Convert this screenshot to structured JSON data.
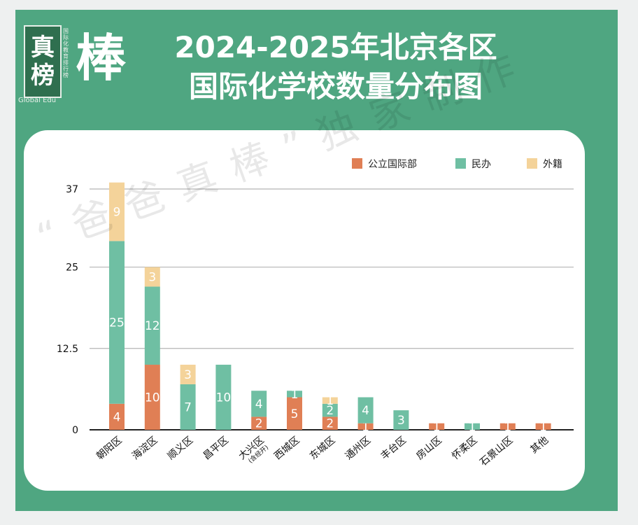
{
  "logo": {
    "char_top": "真",
    "char_bottom": "榜",
    "vertical_text": "国际化教育排行榜",
    "english": "Global Edu",
    "brand": "棒"
  },
  "title_line1": "2024-2025年北京各区",
  "title_line2": "国际化学校数量分布图",
  "watermark": "“爸爸真棒”独家制作",
  "colors": {
    "frame": "#4fa681",
    "public": "#e07f55",
    "private": "#6fbfa3",
    "foreign": "#f4d39a"
  },
  "chart_data": {
    "type": "bar",
    "stacked": true,
    "categories": [
      "朝阳区",
      "海淀区",
      "顺义区",
      "昌平区",
      "大兴区",
      "西城区",
      "东城区",
      "通州区",
      "丰台区",
      "房山区",
      "怀柔区",
      "石景山区",
      "其他"
    ],
    "category_notes": [
      "",
      "",
      "",
      "",
      "(含经开)",
      "",
      "",
      "",
      "",
      "",
      "",
      "",
      ""
    ],
    "series": [
      {
        "name": "公立国际部",
        "values": [
          4,
          10,
          0,
          0,
          2,
          5,
          2,
          1,
          0,
          1,
          0,
          1,
          1
        ]
      },
      {
        "name": "民办",
        "values": [
          25,
          12,
          7,
          10,
          4,
          1,
          2,
          4,
          3,
          0,
          1,
          0,
          0
        ]
      },
      {
        "name": "外籍",
        "values": [
          9,
          3,
          3,
          0,
          0,
          0,
          1,
          0,
          0,
          0,
          0,
          0,
          0
        ]
      }
    ],
    "y_ticks": [
      0,
      12.5,
      25,
      37
    ],
    "y_tick_labels": [
      "0",
      "12.5",
      "25",
      "37"
    ],
    "ylim": [
      0,
      37
    ],
    "grid": true,
    "legend_position": "top-right"
  }
}
